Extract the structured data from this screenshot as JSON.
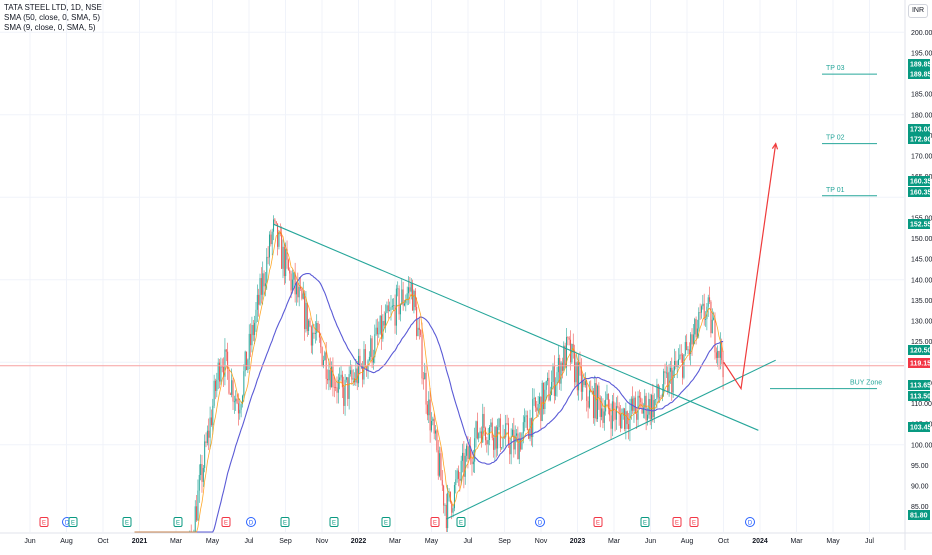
{
  "legend": {
    "symbol_line": "TATA STEEL LTD, 1D, NSE",
    "sma1": "SMA (50, close, 0, SMA, 5)",
    "sma2": "SMA (9, close, 0, SMA, 5)"
  },
  "currency": "INR",
  "colors": {
    "up": "#26a69a",
    "down": "#ef5350",
    "sma50": "#5b5bd6",
    "sma9": "#ff9800",
    "trendline": "#26a69a",
    "arrow": "#ef3b3b",
    "hline": "#f7a1a1",
    "badge_green": "#089981",
    "badge_red": "#f23645"
  },
  "chart_data": {
    "type": "candlestick",
    "title": "TATA STEEL LTD, 1D, NSE",
    "y_range": [
      80,
      205
    ],
    "y_ticks": [
      85,
      90,
      95,
      100,
      105,
      110,
      115,
      125,
      130,
      135,
      140,
      145,
      150,
      155,
      165,
      170,
      175,
      180,
      185,
      195,
      200
    ],
    "x_ticks": [
      "Jun",
      "Aug",
      "Oct",
      "2021",
      "Mar",
      "May",
      "Jul",
      "Sep",
      "Nov",
      "2022",
      "Mar",
      "May",
      "Jul",
      "Sep",
      "Nov",
      "2023",
      "Mar",
      "Jun",
      "Aug",
      "Oct",
      "2024",
      "Mar",
      "May",
      "Jul"
    ],
    "price_path": [
      {
        "t": "2020-12",
        "price": 55
      },
      {
        "t": "2021-03",
        "price": 70
      },
      {
        "t": "2021-05",
        "price": 122
      },
      {
        "t": "2021-06",
        "price": 110
      },
      {
        "t": "2021-08",
        "price": 152
      },
      {
        "t": "2021-09",
        "price": 140
      },
      {
        "t": "2021-10",
        "price": 130
      },
      {
        "t": "2021-12",
        "price": 112
      },
      {
        "t": "2022-01",
        "price": 118
      },
      {
        "t": "2022-03",
        "price": 133
      },
      {
        "t": "2022-04",
        "price": 138
      },
      {
        "t": "2022-05",
        "price": 108
      },
      {
        "t": "2022-06",
        "price": 84
      },
      {
        "t": "2022-08",
        "price": 105
      },
      {
        "t": "2022-10",
        "price": 100
      },
      {
        "t": "2022-12",
        "price": 114
      },
      {
        "t": "2023-01",
        "price": 123
      },
      {
        "t": "2023-02",
        "price": 112
      },
      {
        "t": "2023-04",
        "price": 107
      },
      {
        "t": "2023-06",
        "price": 110
      },
      {
        "t": "2023-08",
        "price": 123
      },
      {
        "t": "2023-09",
        "price": 133
      },
      {
        "t": "2023-10",
        "price": 120
      }
    ],
    "series": [
      {
        "name": "SMA (50, close, 0, SMA, 5)"
      },
      {
        "name": "SMA (9, close, 0, SMA, 5)"
      }
    ],
    "price_labels": [
      {
        "value": "189.85",
        "color": "green"
      },
      {
        "value": "189.85",
        "color": "green"
      },
      {
        "value": "173.00",
        "color": "green"
      },
      {
        "value": "172.90",
        "color": "green"
      },
      {
        "value": "160.35",
        "color": "green"
      },
      {
        "value": "160.35",
        "color": "green"
      },
      {
        "value": "152.55",
        "color": "green"
      },
      {
        "value": "120.50",
        "color": "green"
      },
      {
        "value": "119.15",
        "color": "red"
      },
      {
        "value": "113.65",
        "color": "green"
      },
      {
        "value": "113.50",
        "color": "green"
      },
      {
        "value": "103.45",
        "color": "green"
      },
      {
        "value": "81.80",
        "color": "green"
      }
    ],
    "annotations": [
      {
        "text": "TP 03",
        "price": 189.85
      },
      {
        "text": "TP 02",
        "price": 173.0
      },
      {
        "text": "TP 01",
        "price": 160.35
      },
      {
        "text": "BUY Zone",
        "price": 113.6
      }
    ],
    "horizontal_line": 119.15,
    "trendlines": [
      {
        "from": {
          "t": "2021-08",
          "price": 153.5
        },
        "to": {
          "t": "2023-12",
          "price": 103.5
        }
      },
      {
        "from": {
          "t": "2022-06",
          "price": 82
        },
        "to": {
          "t": "2024-01",
          "price": 120.5
        }
      }
    ],
    "projection": [
      {
        "t": "2023-10",
        "price": 120
      },
      {
        "t": "2023-11",
        "price": 113.6
      },
      {
        "t": "2024-01",
        "price": 173
      }
    ],
    "event_markers": [
      "E",
      "D",
      "E",
      "E",
      "E",
      "E",
      "D",
      "E",
      "E",
      "E",
      "E",
      "E",
      "D",
      "E",
      "E",
      "E",
      "E",
      "D",
      "E",
      "E"
    ]
  }
}
